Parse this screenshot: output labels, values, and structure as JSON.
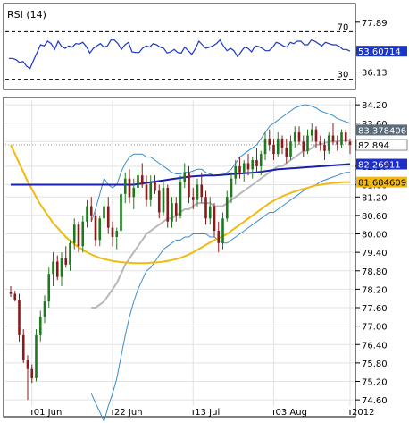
{
  "chart_data": [
    {
      "type": "line",
      "title": "RSI (14)",
      "levels": [
        70,
        30
      ],
      "level_labels": [
        "70",
        "30"
      ],
      "y_ticks": [
        77.89,
        36.13
      ],
      "y_tick_labels": [
        "77.89",
        "36.13"
      ],
      "ylim": [
        23,
        92
      ],
      "current_value": 53.60714,
      "current_label": "53.60714",
      "series": [
        {
          "color": "#1a35c9",
          "values": [
            47.5,
            47.5,
            46.5,
            44,
            45,
            41,
            39,
            46,
            52.5,
            59,
            58,
            62,
            60,
            55,
            62,
            57.5,
            56,
            58,
            57,
            60,
            59.5,
            61,
            57.5,
            52,
            56,
            58,
            60,
            57,
            58,
            63,
            63,
            60,
            55,
            59,
            61,
            53,
            52.5,
            52.5,
            56,
            58,
            57,
            60,
            59,
            57,
            56,
            52,
            53,
            55,
            52.5,
            52,
            57,
            54,
            51,
            55.5,
            62,
            59,
            56,
            57,
            58,
            60,
            63,
            58,
            54,
            56,
            54,
            49,
            53,
            57,
            56,
            53,
            58,
            57.5,
            56,
            54,
            54,
            57,
            61,
            60,
            58,
            57,
            61,
            60,
            62,
            62,
            59,
            59,
            63,
            62,
            60,
            58,
            61,
            60,
            59,
            59,
            57.5,
            55,
            55,
            53.6
          ]
        }
      ]
    },
    {
      "type": "candlestick",
      "title": "",
      "ylim": [
        74.4,
        84.35
      ],
      "y_ticks": [
        84.2,
        83.6,
        83.0,
        82.2,
        81.6,
        81.2,
        80.6,
        80.0,
        79.4,
        78.8,
        78.2,
        77.6,
        77.0,
        76.4,
        75.8,
        75.2,
        74.6
      ],
      "y_tick_labels": [
        "84.20",
        "83.60",
        "83.00",
        "82.20",
        "81.60",
        "81.20",
        "80.60",
        "80.00",
        "79.40",
        "78.80",
        "78.20",
        "77.60",
        "77.00",
        "76.40",
        "75.80",
        "75.20",
        "74.60"
      ],
      "x_tick_labels": [
        "01 Jun",
        "22 Jun",
        "13 Jul",
        "03 Aug",
        "2012"
      ],
      "x_tick_index": [
        5,
        24,
        43,
        62,
        80
      ],
      "colors": {
        "up": "#1f7a1f",
        "down": "#8b1a1a",
        "bollinger": "#3a8cc9",
        "ma_short": "#b8b8b8",
        "ma_mid": "#f2b90f",
        "ma_long": "#1a1fb0"
      },
      "value_badges": [
        {
          "label": "83.378406",
          "value": 83.378406,
          "color": "#5b6b7a"
        },
        {
          "label": "82.894",
          "value": 82.894,
          "color": "#ffffff"
        },
        {
          "label": "82.26911",
          "value": 82.26911,
          "color": "#1f2fc4"
        },
        {
          "label": "81.684609",
          "value": 81.684609,
          "color": "#f2b90f"
        }
      ],
      "ohlc": [
        [
          78.1,
          78.3,
          77.95,
          78.05
        ],
        [
          78.05,
          78.15,
          77.8,
          77.85
        ],
        [
          77.85,
          78.05,
          76.5,
          76.7
        ],
        [
          76.7,
          76.9,
          75.8,
          75.9
        ],
        [
          75.9,
          76.05,
          74.6,
          75.6
        ],
        [
          75.6,
          75.75,
          75.15,
          75.3
        ],
        [
          75.3,
          76.9,
          75.2,
          76.7
        ],
        [
          76.7,
          77.5,
          76.5,
          77.3
        ],
        [
          77.3,
          78.0,
          77.1,
          77.8
        ],
        [
          77.8,
          78.9,
          77.6,
          78.7
        ],
        [
          78.7,
          79.4,
          78.3,
          79.1
        ],
        [
          79.1,
          79.3,
          78.5,
          78.6
        ],
        [
          78.6,
          79.4,
          78.3,
          79.2
        ],
        [
          79.2,
          79.6,
          78.9,
          79.0
        ],
        [
          79.0,
          79.8,
          78.8,
          79.7
        ],
        [
          79.7,
          80.5,
          79.5,
          80.3
        ],
        [
          80.3,
          80.4,
          79.4,
          79.6
        ],
        [
          79.6,
          80.6,
          79.4,
          80.4
        ],
        [
          80.4,
          81.1,
          80.2,
          80.9
        ],
        [
          80.9,
          81.2,
          80.4,
          80.6
        ],
        [
          80.6,
          80.7,
          79.6,
          79.8
        ],
        [
          79.8,
          80.6,
          79.6,
          80.5
        ],
        [
          80.5,
          81.1,
          80.3,
          80.9
        ],
        [
          80.9,
          81.2,
          80.0,
          80.2
        ],
        [
          80.2,
          80.4,
          79.6,
          79.9
        ],
        [
          79.9,
          80.2,
          79.5,
          80.1
        ],
        [
          80.1,
          81.5,
          80.0,
          81.3
        ],
        [
          81.3,
          82.0,
          81.0,
          81.8
        ],
        [
          81.8,
          82.1,
          81.0,
          81.2
        ],
        [
          81.2,
          81.8,
          80.8,
          81.5
        ],
        [
          81.5,
          82.1,
          81.3,
          81.9
        ],
        [
          81.9,
          82.3,
          81.5,
          81.6
        ],
        [
          81.6,
          81.9,
          80.9,
          81.1
        ],
        [
          81.1,
          81.9,
          80.9,
          81.7
        ],
        [
          81.7,
          81.9,
          81.3,
          81.4
        ],
        [
          81.4,
          81.6,
          80.5,
          80.7
        ],
        [
          80.7,
          81.7,
          80.6,
          81.5
        ],
        [
          81.5,
          81.6,
          80.2,
          80.4
        ],
        [
          80.4,
          81.2,
          80.2,
          81.0
        ],
        [
          81.0,
          81.2,
          80.4,
          80.6
        ],
        [
          80.6,
          81.9,
          80.5,
          81.7
        ],
        [
          81.7,
          82.3,
          81.5,
          82.0
        ],
        [
          82.0,
          82.2,
          81.0,
          81.2
        ],
        [
          81.2,
          81.5,
          80.8,
          81.1
        ],
        [
          81.1,
          81.8,
          80.9,
          81.6
        ],
        [
          81.6,
          82.0,
          81.0,
          81.2
        ],
        [
          81.2,
          81.4,
          80.3,
          80.5
        ],
        [
          80.5,
          81.2,
          80.3,
          80.9
        ],
        [
          80.9,
          81.0,
          79.9,
          80.1
        ],
        [
          80.1,
          80.4,
          79.4,
          79.7
        ],
        [
          79.7,
          80.7,
          79.5,
          80.5
        ],
        [
          80.5,
          81.4,
          80.4,
          81.2
        ],
        [
          81.2,
          82.0,
          81.0,
          81.8
        ],
        [
          81.8,
          82.4,
          81.6,
          82.2
        ],
        [
          82.2,
          82.5,
          81.8,
          82.0
        ],
        [
          82.0,
          82.4,
          81.7,
          82.3
        ],
        [
          82.3,
          82.6,
          81.9,
          82.1
        ],
        [
          82.1,
          82.5,
          81.8,
          82.4
        ],
        [
          82.4,
          82.8,
          82.0,
          82.2
        ],
        [
          82.2,
          82.7,
          81.9,
          82.6
        ],
        [
          82.6,
          83.3,
          82.4,
          83.1
        ],
        [
          83.1,
          83.4,
          82.7,
          82.9
        ],
        [
          82.9,
          83.1,
          82.4,
          82.6
        ],
        [
          82.6,
          83.3,
          82.5,
          83.1
        ],
        [
          83.1,
          83.2,
          82.6,
          82.8
        ],
        [
          82.8,
          83.1,
          82.3,
          82.5
        ],
        [
          82.5,
          83.2,
          82.4,
          83.0
        ],
        [
          83.0,
          83.5,
          82.8,
          83.3
        ],
        [
          83.3,
          83.5,
          82.9,
          83.0
        ],
        [
          83.0,
          83.2,
          82.5,
          82.7
        ],
        [
          82.7,
          83.4,
          82.6,
          83.2
        ],
        [
          83.2,
          83.6,
          83.0,
          83.4
        ],
        [
          83.4,
          83.5,
          82.8,
          83.0
        ],
        [
          83.0,
          83.2,
          82.7,
          82.9
        ],
        [
          82.9,
          83.1,
          82.4,
          82.7
        ],
        [
          82.7,
          83.3,
          82.6,
          83.2
        ],
        [
          83.2,
          83.6,
          82.9,
          83.0
        ],
        [
          83.0,
          83.2,
          82.7,
          82.9
        ],
        [
          82.9,
          83.4,
          82.8,
          83.3
        ],
        [
          83.3,
          83.4,
          82.9,
          83.0
        ],
        [
          83.0,
          83.1,
          82.6,
          82.9
        ]
      ],
      "ma_short": [
        null,
        null,
        null,
        null,
        null,
        null,
        null,
        null,
        null,
        null,
        null,
        null,
        null,
        null,
        null,
        null,
        null,
        null,
        null,
        77.6,
        77.6,
        77.7,
        77.8,
        78.0,
        78.2,
        78.4,
        78.7,
        79.0,
        79.2,
        79.4,
        79.6,
        79.8,
        80.0,
        80.1,
        80.2,
        80.3,
        80.4,
        80.5,
        80.5,
        80.6,
        80.7,
        80.8,
        80.8,
        80.9,
        81.0,
        81.0,
        81.0,
        81.0,
        80.9,
        80.9,
        80.9,
        81.0,
        81.1,
        81.2,
        81.3,
        81.4,
        81.5,
        81.6,
        81.7,
        81.8,
        81.9,
        82.0,
        82.1,
        82.2,
        82.2,
        82.3,
        82.4,
        82.5,
        82.6,
        82.7,
        82.7,
        82.8,
        82.9,
        82.9,
        82.95,
        83.0,
        83.0,
        83.0,
        83.05,
        83.05,
        83.05
      ],
      "bollinger_upper": [
        null,
        null,
        null,
        null,
        null,
        null,
        null,
        null,
        null,
        null,
        null,
        null,
        null,
        null,
        null,
        null,
        null,
        null,
        null,
        80.4,
        80.8,
        81.3,
        81.8,
        81.6,
        81.5,
        81.6,
        82.0,
        82.3,
        82.5,
        82.6,
        82.6,
        82.6,
        82.5,
        82.5,
        82.4,
        82.3,
        82.2,
        82.1,
        82.0,
        81.95,
        81.95,
        82.0,
        82.0,
        82.05,
        82.1,
        82.1,
        82.0,
        81.95,
        81.9,
        81.9,
        81.9,
        82.0,
        82.1,
        82.3,
        82.5,
        82.6,
        82.7,
        82.8,
        82.9,
        83.1,
        83.3,
        83.5,
        83.6,
        83.7,
        83.8,
        83.9,
        84.0,
        84.1,
        84.15,
        84.2,
        84.2,
        84.15,
        84.1,
        84.0,
        83.95,
        83.9,
        83.85,
        83.75,
        83.7,
        83.65,
        83.6
      ],
      "bollinger_lower": [
        null,
        null,
        null,
        null,
        null,
        null,
        null,
        null,
        null,
        null,
        null,
        null,
        null,
        null,
        null,
        null,
        null,
        null,
        null,
        74.8,
        74.5,
        74.2,
        73.9,
        74.4,
        74.8,
        75.3,
        76.0,
        76.7,
        77.3,
        77.8,
        78.2,
        78.5,
        78.8,
        78.9,
        79.1,
        79.3,
        79.5,
        79.6,
        79.7,
        79.8,
        79.8,
        79.9,
        79.9,
        80.0,
        80.0,
        80.0,
        80.0,
        79.9,
        79.9,
        79.8,
        79.7,
        79.7,
        79.8,
        79.9,
        80.0,
        80.1,
        80.2,
        80.3,
        80.4,
        80.5,
        80.6,
        80.7,
        80.7,
        80.8,
        80.9,
        81.0,
        81.1,
        81.2,
        81.3,
        81.4,
        81.5,
        81.55,
        81.6,
        81.7,
        81.75,
        81.8,
        81.85,
        81.9,
        81.95,
        82.0,
        82.0
      ],
      "ma_mid": [
        82.9,
        82.6,
        82.3,
        82.0,
        81.7,
        81.45,
        81.2,
        80.95,
        80.75,
        80.55,
        80.35,
        80.2,
        80.05,
        79.9,
        79.78,
        79.67,
        79.57,
        79.48,
        79.4,
        79.33,
        79.27,
        79.22,
        79.18,
        79.15,
        79.12,
        79.1,
        79.08,
        79.07,
        79.06,
        79.05,
        79.05,
        79.05,
        79.05,
        79.06,
        79.07,
        79.08,
        79.1,
        79.12,
        79.15,
        79.18,
        79.22,
        79.27,
        79.33,
        79.4,
        79.48,
        79.56,
        79.64,
        79.72,
        79.8,
        79.86,
        79.92,
        80.0,
        80.1,
        80.2,
        80.3,
        80.4,
        80.5,
        80.6,
        80.7,
        80.8,
        80.9,
        81.0,
        81.08,
        81.15,
        81.22,
        81.28,
        81.33,
        81.38,
        81.42,
        81.46,
        81.5,
        81.54,
        81.58,
        81.6,
        81.62,
        81.64,
        81.66,
        81.67,
        81.68,
        81.684,
        81.684609
      ],
      "ma_long": [
        81.6,
        81.6,
        81.6,
        81.6,
        81.6,
        81.6,
        81.6,
        81.6,
        81.6,
        81.6,
        81.6,
        81.6,
        81.6,
        81.6,
        81.6,
        81.6,
        81.6,
        81.6,
        81.6,
        81.6,
        81.6,
        81.6,
        81.6,
        81.6,
        81.6,
        81.6,
        81.6,
        81.6,
        81.6,
        81.6,
        81.62,
        81.64,
        81.66,
        81.68,
        81.7,
        81.72,
        81.74,
        81.76,
        81.78,
        81.8,
        81.82,
        81.84,
        81.86,
        81.87,
        81.88,
        81.89,
        81.9,
        81.9,
        81.9,
        81.91,
        81.92,
        81.93,
        81.94,
        81.95,
        81.96,
        81.97,
        81.98,
        81.99,
        82.0,
        82.02,
        82.04,
        82.06,
        82.08,
        82.1,
        82.11,
        82.12,
        82.13,
        82.14,
        82.15,
        82.16,
        82.17,
        82.18,
        82.19,
        82.2,
        82.21,
        82.22,
        82.23,
        82.24,
        82.25,
        82.26,
        82.26911
      ]
    }
  ]
}
